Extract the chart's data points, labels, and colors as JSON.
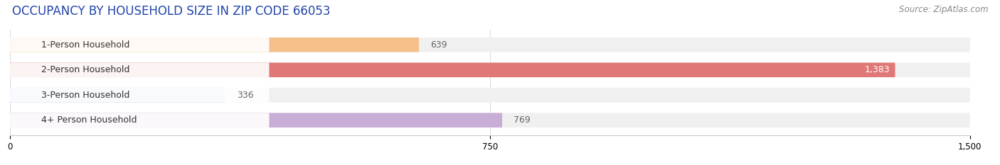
{
  "title": "OCCUPANCY BY HOUSEHOLD SIZE IN ZIP CODE 66053",
  "source": "Source: ZipAtlas.com",
  "categories": [
    "1-Person Household",
    "2-Person Household",
    "3-Person Household",
    "4+ Person Household"
  ],
  "values": [
    639,
    1383,
    336,
    769
  ],
  "bar_colors": [
    "#f5c08a",
    "#e07878",
    "#adc8e8",
    "#c8aed6"
  ],
  "xlim": [
    0,
    1500
  ],
  "xticks": [
    0,
    750,
    1500
  ],
  "title_fontsize": 12,
  "source_fontsize": 8.5,
  "label_fontsize": 9,
  "value_fontsize": 9,
  "background_color": "#ffffff",
  "bar_background_color": "#f0f0f0",
  "value_inside_threshold": 1200
}
